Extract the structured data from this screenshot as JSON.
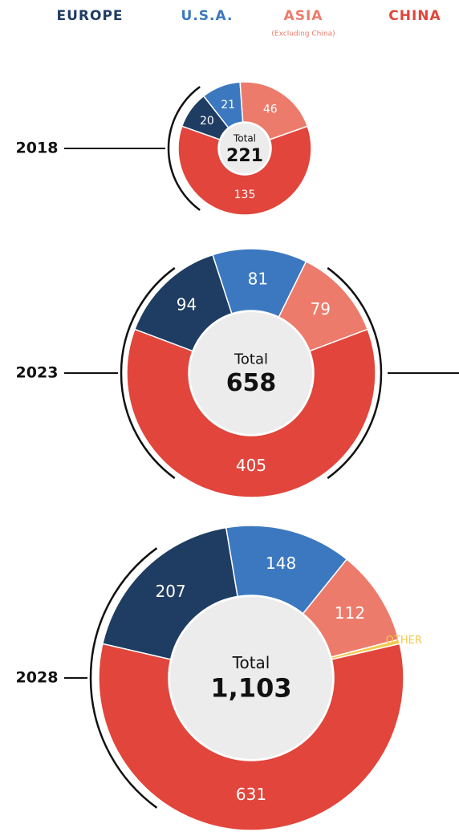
{
  "legend": [
    {
      "label": "EUROPE",
      "color": "#1f3d63"
    },
    {
      "label": "U.S.A.",
      "color": "#3b78c0"
    },
    {
      "label": "ASIA",
      "note": "(Excluding China)",
      "color": "#ec7b6b"
    },
    {
      "label": "CHINA",
      "color": "#e1453b"
    }
  ],
  "chart_data": [
    {
      "type": "pie",
      "title": "2018",
      "center_label": "Total",
      "total": 221,
      "values": [
        20,
        21,
        46,
        135
      ],
      "colors": [
        "#1f3d63",
        "#3b78c0",
        "#ec7b6b",
        "#e1453b"
      ]
    },
    {
      "type": "pie",
      "title": "2023",
      "center_label": "Total",
      "total": 658,
      "values": [
        94,
        81,
        79,
        405
      ],
      "colors": [
        "#1f3d63",
        "#3b78c0",
        "#ec7b6b",
        "#e1453b"
      ]
    },
    {
      "type": "pie",
      "title": "2028",
      "center_label": "Total",
      "total": {
        "value": 1103,
        "label": "1,103"
      },
      "values": [
        207,
        148,
        112,
        5,
        631
      ],
      "colors": [
        "#1f3d63",
        "#3b78c0",
        "#ec7b6b",
        "#f2c94c",
        "#e1453b"
      ],
      "annotation": "OTHER"
    }
  ]
}
